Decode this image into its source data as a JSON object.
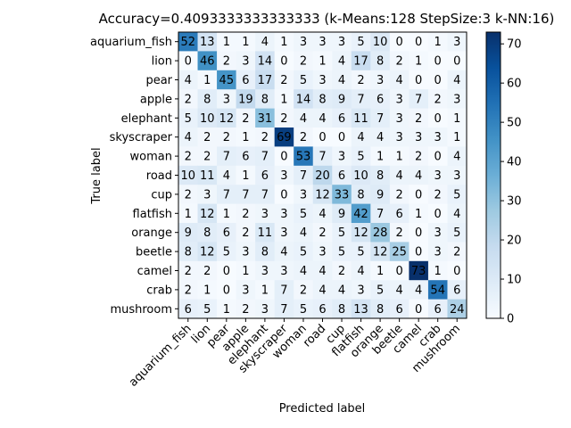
{
  "chart_data": {
    "type": "heatmap",
    "title": "Accuracy=0.4093333333333333 (k-Means:128 StepSize:3 k-NN:16)",
    "xlabel": "Predicted label",
    "ylabel": "True label",
    "labels": [
      "aquarium_fish",
      "lion",
      "pear",
      "apple",
      "elephant",
      "skyscraper",
      "woman",
      "road",
      "cup",
      "flatfish",
      "orange",
      "beetle",
      "camel",
      "crab",
      "mushroom"
    ],
    "matrix": [
      [
        52,
        13,
        1,
        1,
        4,
        1,
        3,
        3,
        3,
        5,
        10,
        0,
        0,
        1,
        3
      ],
      [
        0,
        46,
        2,
        3,
        14,
        0,
        2,
        1,
        4,
        17,
        8,
        2,
        1,
        0,
        0
      ],
      [
        4,
        1,
        45,
        6,
        17,
        2,
        5,
        3,
        4,
        2,
        3,
        4,
        0,
        0,
        4
      ],
      [
        2,
        8,
        3,
        19,
        8,
        1,
        14,
        8,
        9,
        7,
        6,
        3,
        7,
        2,
        3
      ],
      [
        5,
        10,
        12,
        2,
        31,
        2,
        4,
        4,
        6,
        11,
        7,
        3,
        2,
        0,
        1
      ],
      [
        4,
        2,
        2,
        1,
        2,
        69,
        2,
        0,
        0,
        4,
        4,
        3,
        3,
        3,
        1
      ],
      [
        2,
        2,
        7,
        6,
        7,
        0,
        53,
        7,
        3,
        5,
        1,
        1,
        2,
        0,
        4
      ],
      [
        10,
        11,
        4,
        1,
        6,
        3,
        7,
        20,
        6,
        10,
        8,
        4,
        4,
        3,
        3
      ],
      [
        2,
        3,
        7,
        7,
        7,
        0,
        3,
        12,
        33,
        8,
        9,
        2,
        0,
        2,
        5
      ],
      [
        1,
        12,
        1,
        2,
        3,
        3,
        5,
        4,
        9,
        42,
        7,
        6,
        1,
        0,
        4
      ],
      [
        9,
        8,
        6,
        2,
        11,
        3,
        4,
        2,
        5,
        12,
        28,
        2,
        0,
        3,
        5
      ],
      [
        8,
        12,
        5,
        3,
        8,
        4,
        5,
        3,
        5,
        5,
        12,
        25,
        0,
        3,
        2
      ],
      [
        2,
        2,
        0,
        1,
        3,
        3,
        4,
        4,
        2,
        4,
        1,
        0,
        73,
        1,
        0
      ],
      [
        2,
        1,
        0,
        3,
        1,
        7,
        2,
        4,
        4,
        3,
        5,
        4,
        4,
        54,
        6
      ],
      [
        6,
        5,
        1,
        2,
        3,
        7,
        5,
        6,
        8,
        13,
        8,
        6,
        0,
        6,
        24
      ]
    ],
    "colorbar": {
      "min": 0,
      "max": 73,
      "ticks": [
        0,
        10,
        20,
        30,
        40,
        50,
        60,
        70
      ]
    },
    "colormap": {
      "low": "#f7fbff",
      "high": "#08306b"
    }
  }
}
